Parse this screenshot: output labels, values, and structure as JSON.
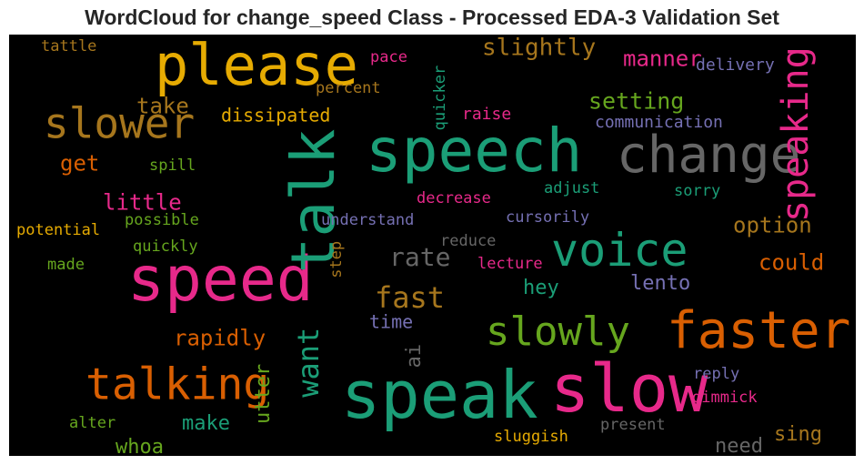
{
  "chart_data": {
    "type": "wordcloud",
    "title": "WordCloud for change_speed Class - Processed EDA-3 Validation Set",
    "background": "#000000",
    "words": [
      {
        "text": "please",
        "color": "#e6ab02"
      },
      {
        "text": "speech",
        "color": "#1b9e77"
      },
      {
        "text": "speed",
        "color": "#e7298a"
      },
      {
        "text": "speak",
        "color": "#1b9e77"
      },
      {
        "text": "slow",
        "color": "#e7298a"
      },
      {
        "text": "talk",
        "color": "#1b9e77"
      },
      {
        "text": "change",
        "color": "#666666"
      },
      {
        "text": "faster",
        "color": "#d95f02"
      },
      {
        "text": "voice",
        "color": "#1b9e77"
      },
      {
        "text": "slower",
        "color": "#a6761d"
      },
      {
        "text": "talking",
        "color": "#d95f02"
      },
      {
        "text": "speaking",
        "color": "#e7298a"
      },
      {
        "text": "slowly",
        "color": "#66a61e"
      },
      {
        "text": "fast",
        "color": "#a6761d"
      },
      {
        "text": "want",
        "color": "#1b9e77"
      },
      {
        "text": "rate",
        "color": "#666666"
      },
      {
        "text": "slightly",
        "color": "#a6761d"
      },
      {
        "text": "setting",
        "color": "#66a61e"
      },
      {
        "text": "manner",
        "color": "#e7298a"
      },
      {
        "text": "rapidly",
        "color": "#d95f02"
      },
      {
        "text": "option",
        "color": "#a6761d"
      },
      {
        "text": "could",
        "color": "#d95f02"
      },
      {
        "text": "take",
        "color": "#a6761d"
      },
      {
        "text": "little",
        "color": "#e7298a"
      },
      {
        "text": "get",
        "color": "#d95f02"
      },
      {
        "text": "dissipated",
        "color": "#e6ab02"
      },
      {
        "text": "hey",
        "color": "#1b9e77"
      },
      {
        "text": "lento",
        "color": "#7570b3"
      },
      {
        "text": "time",
        "color": "#7570b3"
      },
      {
        "text": "make",
        "color": "#1b9e77"
      },
      {
        "text": "utter",
        "color": "#66a61e"
      },
      {
        "text": "whoa",
        "color": "#66a61e"
      },
      {
        "text": "need",
        "color": "#666666"
      },
      {
        "text": "sing",
        "color": "#a6761d"
      },
      {
        "text": "ai",
        "color": "#666666"
      },
      {
        "text": "delivery",
        "color": "#7570b3"
      },
      {
        "text": "communication",
        "color": "#7570b3"
      },
      {
        "text": "raise",
        "color": "#e7298a"
      },
      {
        "text": "percent",
        "color": "#a6761d"
      },
      {
        "text": "pace",
        "color": "#e7298a"
      },
      {
        "text": "quicker",
        "color": "#1b9e77"
      },
      {
        "text": "tattle",
        "color": "#a6761d"
      },
      {
        "text": "spill",
        "color": "#66a61e"
      },
      {
        "text": "potential",
        "color": "#e6ab02"
      },
      {
        "text": "possible",
        "color": "#66a61e"
      },
      {
        "text": "quickly",
        "color": "#66a61e"
      },
      {
        "text": "made",
        "color": "#66a61e"
      },
      {
        "text": "decrease",
        "color": "#e7298a"
      },
      {
        "text": "adjust",
        "color": "#1b9e77"
      },
      {
        "text": "sorry",
        "color": "#1b9e77"
      },
      {
        "text": "understand",
        "color": "#7570b3"
      },
      {
        "text": "cursorily",
        "color": "#7570b3"
      },
      {
        "text": "reduce",
        "color": "#666666"
      },
      {
        "text": "step",
        "color": "#a6761d"
      },
      {
        "text": "lecture",
        "color": "#e7298a"
      },
      {
        "text": "reply",
        "color": "#7570b3"
      },
      {
        "text": "gimmick",
        "color": "#e7298a"
      },
      {
        "text": "present",
        "color": "#666666"
      },
      {
        "text": "sluggish",
        "color": "#e6ab02"
      },
      {
        "text": "alter",
        "color": "#66a61e"
      }
    ]
  }
}
